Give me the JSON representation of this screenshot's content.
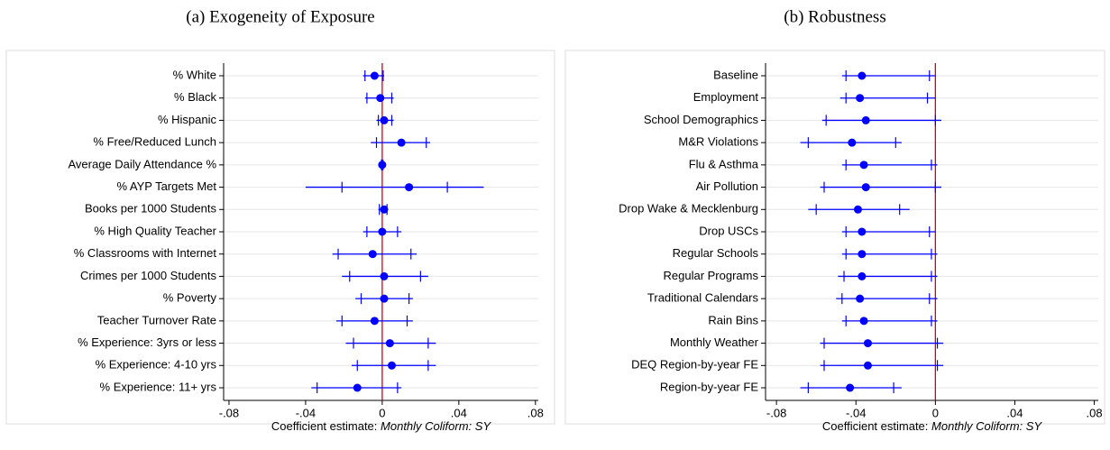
{
  "chart_data": [
    {
      "type": "coefplot",
      "title": "(a) Exogeneity of Exposure",
      "xlabel": "Coefficient estimate:",
      "xlabel_italic": "Monthly Coliform: SY",
      "categories": [
        "% White",
        "% Black",
        "% Hispanic",
        "% Free/Reduced Lunch",
        "Average Daily Attendance %",
        "% AYP Targets Met",
        "Books per 1000 Students",
        "% High Quality Teacher",
        "% Classrooms with Internet",
        "Crimes per 1000 Students",
        "% Poverty",
        "Teacher Turnover Rate",
        "% Experience: 3yrs or less",
        "% Experience: 4-10 yrs",
        "% Experience: 11+ yrs"
      ],
      "values": [
        -0.004,
        -0.001,
        0.001,
        0.01,
        0,
        0.014,
        0.001,
        0,
        -0.005,
        0.001,
        0.001,
        -0.004,
        0.004,
        0.005,
        -0.013
      ],
      "outer_low": [
        -0.01,
        -0.009,
        -0.003,
        -0.006,
        -0.0005,
        -0.04,
        -0.002,
        -0.01,
        -0.026,
        -0.021,
        -0.014,
        -0.024,
        -0.019,
        -0.016,
        -0.037
      ],
      "outer_high": [
        0.001,
        0.006,
        0.006,
        0.025,
        0.0005,
        0.053,
        0.003,
        0.01,
        0.018,
        0.024,
        0.016,
        0.016,
        0.028,
        0.028,
        0.01
      ],
      "inner_low": [
        -0.009,
        -0.008,
        -0.002,
        -0.003,
        -0.0004,
        -0.021,
        -0.0015,
        -0.008,
        -0.023,
        -0.017,
        -0.011,
        -0.021,
        -0.015,
        -0.013,
        -0.034
      ],
      "inner_high": [
        0.0005,
        0.005,
        0.005,
        0.023,
        0.0004,
        0.034,
        0.0025,
        0.008,
        0.015,
        0.02,
        0.014,
        0.013,
        0.024,
        0.024,
        0.008
      ],
      "xlim": [
        -0.0828,
        0.0815
      ],
      "xticks": [
        {
          "value": -0.08,
          "label": "-.08"
        },
        {
          "value": -0.04,
          "label": "-.04"
        },
        0,
        {
          "value": 0.04,
          "label": ".04"
        },
        {
          "value": 0.08,
          "label": ".08"
        }
      ],
      "refline": 0,
      "refline_color": "#d0021b",
      "color": "#0000ff",
      "grid": true
    },
    {
      "type": "coefplot",
      "title": "(b) Robustness",
      "xlabel": "Coefficient estimate:",
      "xlabel_italic": "Monthly Coliform: SY",
      "categories": [
        "Baseline",
        "Employment",
        "School Demographics",
        "M&R Violations",
        "Flu & Asthma",
        "Air Pollution",
        "Drop Wake & Mecklenburg",
        "Drop USCs",
        "Regular Schools",
        "Regular Programs",
        "Traditional Calendars",
        "Rain Bins",
        "Monthly Weather",
        "DEQ Region-by-year FE",
        "Region-by-year FE"
      ],
      "values": [
        -0.037,
        -0.038,
        -0.035,
        -0.042,
        -0.036,
        -0.035,
        -0.039,
        -0.037,
        -0.037,
        -0.037,
        -0.038,
        -0.036,
        -0.034,
        -0.034,
        -0.043
      ],
      "outer_low": [
        -0.047,
        -0.048,
        -0.057,
        -0.068,
        -0.047,
        -0.058,
        -0.064,
        -0.047,
        -0.047,
        -0.049,
        -0.05,
        -0.047,
        -0.058,
        -0.058,
        -0.068
      ],
      "outer_high": [
        0.0,
        0.0,
        0.003,
        -0.017,
        0.001,
        0.003,
        -0.013,
        0.0,
        0.001,
        0.001,
        0.001,
        0.001,
        0.004,
        0.004,
        -0.017
      ],
      "inner_low": [
        -0.045,
        -0.045,
        -0.055,
        -0.064,
        -0.045,
        -0.056,
        -0.06,
        -0.045,
        -0.045,
        -0.046,
        -0.047,
        -0.045,
        -0.056,
        -0.056,
        -0.064
      ],
      "inner_high": [
        -0.003,
        -0.004,
        0.0,
        -0.02,
        -0.002,
        0.0,
        -0.018,
        -0.003,
        -0.002,
        -0.002,
        -0.003,
        -0.002,
        0.001,
        0.001,
        -0.021
      ],
      "xlim": [
        -0.0855,
        0.082
      ],
      "xticks": [
        {
          "value": -0.08,
          "label": "-.08"
        },
        {
          "value": -0.04,
          "label": "-.04"
        },
        0,
        {
          "value": 0.04,
          "label": ".04"
        },
        {
          "value": 0.08,
          "label": ".08"
        }
      ],
      "refline": 0,
      "refline_color": "#d0021b",
      "color": "#0000ff",
      "grid": true
    }
  ]
}
